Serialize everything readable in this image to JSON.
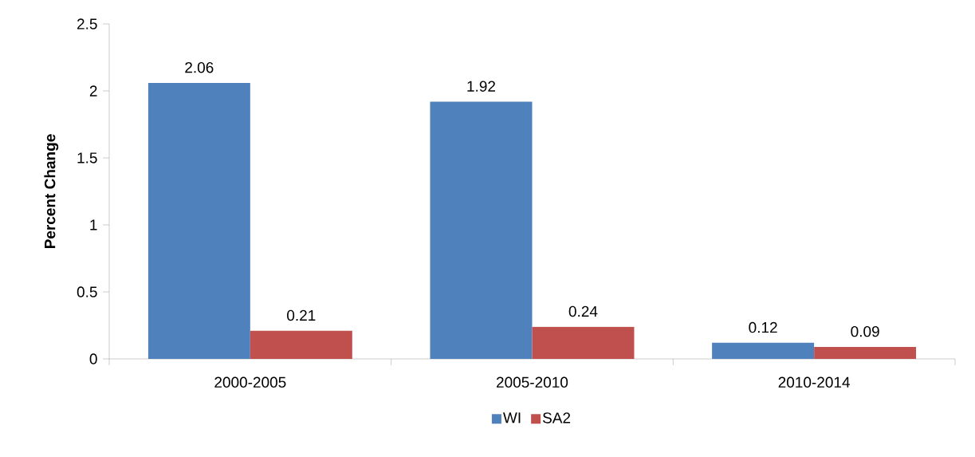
{
  "chart_data": {
    "type": "bar",
    "ylabel": "Percent Change",
    "categories": [
      "2000-2005",
      "2005-2010",
      "2010-2014"
    ],
    "series": [
      {
        "name": "WI",
        "color": "#4f81bd",
        "values": [
          2.06,
          1.92,
          0.12
        ]
      },
      {
        "name": "SA2",
        "color": "#c0504d",
        "values": [
          0.21,
          0.24,
          0.09
        ]
      }
    ],
    "ylim": [
      0,
      2.5
    ],
    "yticks": [
      0,
      0.5,
      1,
      1.5,
      2,
      2.5
    ],
    "data_labels": true,
    "grid": false,
    "legend": "bottom"
  }
}
